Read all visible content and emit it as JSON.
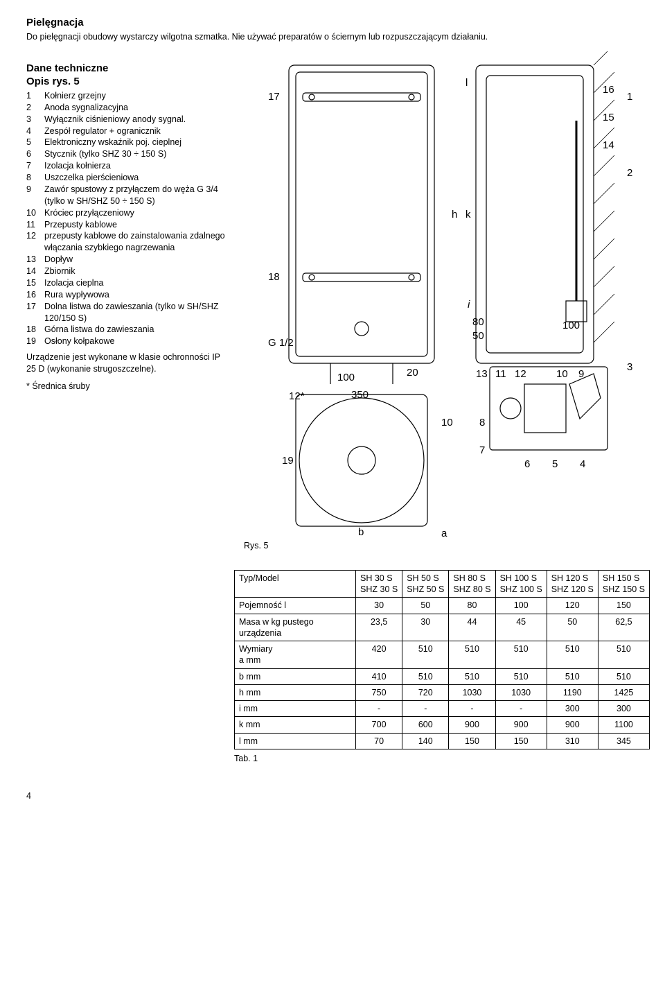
{
  "sections": {
    "care_title": "Pielęgnacja",
    "care_text": "Do pielęgnacji obudowy wystarczy wilgotna szmatka. Nie używać preparatów o ściernym lub rozpuszczającym działaniu.",
    "tech_title": "Dane techniczne",
    "opis_title": "Opis rys. 5"
  },
  "parts": [
    {
      "n": "1",
      "t": "Kołnierz grzejny"
    },
    {
      "n": "2",
      "t": "Anoda sygnalizacyjna"
    },
    {
      "n": "3",
      "t": "Wyłącznik ciśnieniowy anody sygnal."
    },
    {
      "n": "4",
      "t": "Zespół regulator + ogranicznik"
    },
    {
      "n": "5",
      "t": "Elektroniczny wskaźnik poj. cieplnej"
    },
    {
      "n": "6",
      "t": "Stycznik (tylko SHZ 30 ÷ 150 S)"
    },
    {
      "n": "7",
      "t": "Izolacja kołnierza"
    },
    {
      "n": "8",
      "t": "Uszczelka pierścieniowa"
    },
    {
      "n": "9",
      "t": "Zawór spustowy z przyłączem do węża G 3/4 (tylko w SH/SHZ 50 ÷ 150 S)"
    },
    {
      "n": "10",
      "t": "Króciec przyłączeniowy"
    },
    {
      "n": "11",
      "t": "Przepusty kablowe"
    },
    {
      "n": "12",
      "t": "przepusty kablowe do zainstalowania zdalnego włączania szybkiego nagrzewania"
    },
    {
      "n": "13",
      "t": "Dopływ"
    },
    {
      "n": "14",
      "t": "Zbiornik"
    },
    {
      "n": "15",
      "t": "Izolacja cieplna"
    },
    {
      "n": "16",
      "t": "Rura wypływowa"
    },
    {
      "n": "17",
      "t": "Dolna listwa do zawieszania (tylko w SH/SHZ 120/150 S)"
    },
    {
      "n": "18",
      "t": "Górna listwa do zawieszania"
    },
    {
      "n": "19",
      "t": "Osłony kołpakowe"
    }
  ],
  "class_note": "Urządzenie jest wykonane w klasie ochronności IP 25 D (wykonanie strugoszczelne).",
  "asterisk": "* Średnica śruby",
  "figure": {
    "caption": "Rys. 5",
    "callouts_top": [
      "17",
      "18",
      "19"
    ],
    "callouts_right": [
      "16",
      "15",
      "14",
      "13",
      "11",
      "12",
      "10",
      "9",
      "8",
      "7",
      "6",
      "5",
      "4",
      "1",
      "2",
      "3"
    ],
    "dims_on_drawing": [
      "G 1/2",
      "100",
      "350",
      "20",
      "12*",
      "10",
      "80",
      "50",
      "100"
    ],
    "dim_letters": [
      "a",
      "b",
      "h",
      "i",
      "k",
      "l"
    ]
  },
  "table": {
    "header_label": "Typ/Model",
    "models": [
      {
        "top": "SH 30 S",
        "bot": "SHZ 30 S"
      },
      {
        "top": "SH 50 S",
        "bot": "SHZ 50 S"
      },
      {
        "top": "SH 80 S",
        "bot": "SHZ 80 S"
      },
      {
        "top": "SH 100 S",
        "bot": "SHZ 100 S"
      },
      {
        "top": "SH 120 S",
        "bot": "SHZ 120 S"
      },
      {
        "top": "SH 150 S",
        "bot": "SHZ 150 S"
      }
    ],
    "rows": [
      {
        "label": "Pojemność l",
        "vals": [
          "30",
          "50",
          "80",
          "100",
          "120",
          "150"
        ]
      },
      {
        "label": "Masa w kg pustego urządzenia",
        "vals": [
          "23,5",
          "30",
          "44",
          "45",
          "50",
          "62,5"
        ]
      },
      {
        "label": "Wymiary\na        mm",
        "vals": [
          "420",
          "510",
          "510",
          "510",
          "510",
          "510"
        ]
      },
      {
        "label": "b        mm",
        "vals": [
          "410",
          "510",
          "510",
          "510",
          "510",
          "510"
        ]
      },
      {
        "label": "h        mm",
        "vals": [
          "750",
          "720",
          "1030",
          "1030",
          "1190",
          "1425"
        ]
      },
      {
        "label": "i         mm",
        "vals": [
          "-",
          "-",
          "-",
          "-",
          "300",
          "300"
        ]
      },
      {
        "label": "k        mm",
        "vals": [
          "700",
          "600",
          "900",
          "900",
          "900",
          "1100"
        ]
      },
      {
        "label": "l         mm",
        "vals": [
          "70",
          "140",
          "150",
          "150",
          "310",
          "345"
        ]
      }
    ],
    "caption": "Tab. 1"
  },
  "page_number": "4"
}
